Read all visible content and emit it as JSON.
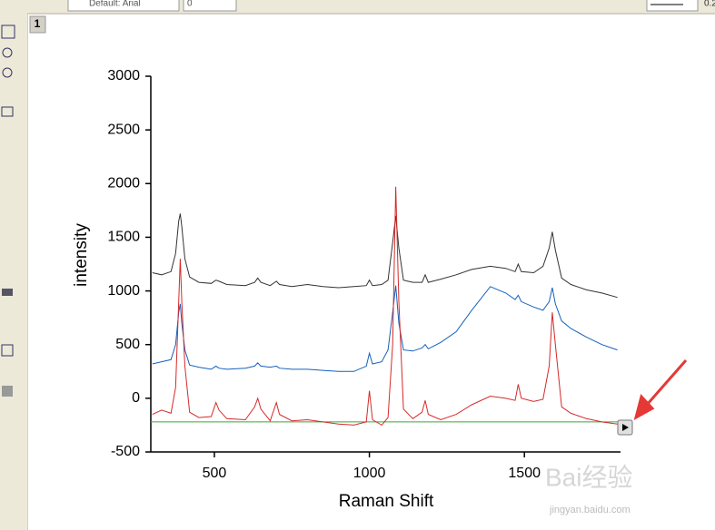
{
  "ui": {
    "font_box": "Default: Arial",
    "size_box": "0",
    "line_width": "0.2",
    "tab": "1",
    "watermark": "Bai经验",
    "watermark_url": "jingyan.baidu.com"
  },
  "chart_data": {
    "type": "line",
    "x_label": "Raman Shift",
    "y_label": "intensity",
    "x": [
      300,
      330,
      360,
      375,
      385,
      390,
      395,
      405,
      420,
      450,
      490,
      505,
      515,
      540,
      600,
      630,
      640,
      650,
      680,
      700,
      710,
      750,
      800,
      850,
      900,
      950,
      990,
      1000,
      1010,
      1040,
      1060,
      1075,
      1085,
      1095,
      1110,
      1140,
      1170,
      1180,
      1190,
      1230,
      1280,
      1330,
      1390,
      1440,
      1470,
      1480,
      1490,
      1530,
      1560,
      1580,
      1590,
      1600,
      1620,
      1650,
      1700,
      1750,
      1800
    ],
    "series": [
      {
        "color": "#333333",
        "values": [
          1170,
          1150,
          1180,
          1350,
          1650,
          1720,
          1600,
          1300,
          1130,
          1080,
          1070,
          1100,
          1090,
          1060,
          1050,
          1080,
          1120,
          1080,
          1050,
          1090,
          1060,
          1040,
          1060,
          1040,
          1030,
          1040,
          1050,
          1100,
          1050,
          1060,
          1100,
          1450,
          1700,
          1400,
          1100,
          1080,
          1080,
          1150,
          1080,
          1110,
          1150,
          1200,
          1230,
          1210,
          1180,
          1250,
          1180,
          1170,
          1230,
          1400,
          1550,
          1380,
          1120,
          1060,
          1010,
          980,
          940
        ]
      },
      {
        "color": "#1560bd",
        "values": [
          320,
          340,
          360,
          500,
          800,
          880,
          700,
          450,
          310,
          290,
          270,
          300,
          280,
          270,
          280,
          300,
          330,
          300,
          290,
          300,
          280,
          270,
          270,
          260,
          250,
          250,
          300,
          420,
          320,
          340,
          450,
          800,
          1050,
          700,
          450,
          440,
          470,
          500,
          460,
          520,
          620,
          820,
          1040,
          980,
          920,
          960,
          900,
          850,
          820,
          900,
          1030,
          880,
          720,
          650,
          570,
          500,
          450
        ]
      },
      {
        "color": "#d42a2a",
        "values": [
          -150,
          -110,
          -140,
          100,
          900,
          1300,
          900,
          300,
          -130,
          -180,
          -170,
          -40,
          -110,
          -190,
          -200,
          -80,
          0,
          -100,
          -210,
          -40,
          -150,
          -210,
          -200,
          -220,
          -240,
          -250,
          -220,
          70,
          -200,
          -250,
          -180,
          500,
          1970,
          900,
          -100,
          -190,
          -130,
          -20,
          -150,
          -200,
          -150,
          -60,
          20,
          0,
          -20,
          130,
          0,
          -30,
          -10,
          300,
          800,
          500,
          -80,
          -140,
          -190,
          -220,
          -240
        ]
      }
    ],
    "baseline": {
      "value": -220,
      "color": "#3aa83a"
    },
    "xlim": [
      295,
      1810
    ],
    "xticks": [
      500,
      1000,
      1500
    ],
    "ylim": [
      -500,
      3000
    ],
    "yticks": [
      -500,
      0,
      500,
      1000,
      1500,
      2000,
      2500,
      3000
    ]
  }
}
